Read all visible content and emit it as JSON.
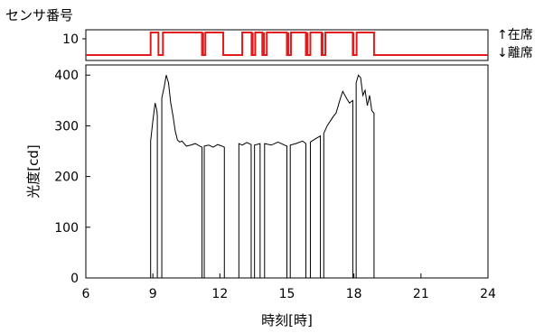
{
  "chart_data": [
    {
      "type": "line",
      "ylabel": "センサ番号",
      "yticks": [
        10
      ],
      "legend": {
        "upper": "↑在席",
        "lower": "↓離席"
      },
      "color": "#e31a1c",
      "x_range": [
        6,
        24
      ],
      "presence_intervals": [
        [
          8.9,
          9.25
        ],
        [
          9.45,
          11.2
        ],
        [
          11.35,
          12.15
        ],
        [
          13.0,
          13.42
        ],
        [
          13.58,
          13.9
        ],
        [
          14.1,
          15.0
        ],
        [
          15.18,
          15.85
        ],
        [
          16.05,
          16.55
        ],
        [
          16.72,
          17.95
        ],
        [
          18.12,
          18.9
        ]
      ],
      "dip_times": [
        11.25,
        13.47,
        13.97,
        15.07,
        15.92,
        16.6,
        17.98
      ]
    },
    {
      "type": "line",
      "xlabel": "時刻[時]",
      "ylabel": "光度[cd]",
      "xlim": [
        6,
        24
      ],
      "ylim": [
        0,
        420
      ],
      "xticks": [
        6,
        9,
        12,
        15,
        18,
        21,
        24
      ],
      "yticks": [
        0,
        100,
        200,
        300,
        400
      ],
      "color": "#000000",
      "series": [
        {
          "x": [
            6,
            8.9,
            8.9,
            9.0,
            9.1,
            9.18,
            9.2,
            9.2,
            9.4,
            9.4,
            9.5,
            9.6,
            9.7,
            9.75,
            9.8,
            9.9,
            10.0,
            10.1,
            10.2,
            10.3,
            10.5,
            10.7,
            10.9,
            11.1,
            11.2,
            11.2,
            11.3,
            11.3,
            11.5,
            11.7,
            11.9,
            12.1,
            12.2,
            12.2,
            12.85,
            12.85,
            13.0,
            13.2,
            13.4,
            13.4,
            13.55,
            13.55,
            13.8,
            13.8,
            14.0,
            14.0,
            14.3,
            14.6,
            14.9,
            15.0,
            15.0,
            15.15,
            15.15,
            15.4,
            15.7,
            15.85,
            15.85,
            16.05,
            16.05,
            16.3,
            16.5,
            16.5,
            16.65,
            16.65,
            16.8,
            16.95,
            17.1,
            17.2,
            17.3,
            17.4,
            17.5,
            17.6,
            17.7,
            17.8,
            17.95,
            17.95,
            18.1,
            18.1,
            18.2,
            18.3,
            18.4,
            18.5,
            18.6,
            18.7,
            18.8,
            18.9,
            18.9,
            24
          ],
          "y": [
            0,
            0,
            270,
            310,
            345,
            330,
            320,
            0,
            0,
            355,
            375,
            400,
            385,
            365,
            345,
            320,
            290,
            272,
            268,
            270,
            260,
            262,
            265,
            260,
            258,
            0,
            0,
            260,
            262,
            258,
            263,
            260,
            258,
            0,
            0,
            265,
            262,
            267,
            263,
            0,
            0,
            262,
            265,
            0,
            0,
            265,
            262,
            268,
            262,
            260,
            0,
            0,
            262,
            265,
            270,
            265,
            0,
            0,
            268,
            275,
            280,
            0,
            0,
            285,
            300,
            310,
            320,
            325,
            340,
            355,
            368,
            360,
            352,
            345,
            350,
            0,
            0,
            385,
            400,
            395,
            360,
            370,
            340,
            360,
            330,
            325,
            0,
            0
          ]
        }
      ]
    }
  ]
}
